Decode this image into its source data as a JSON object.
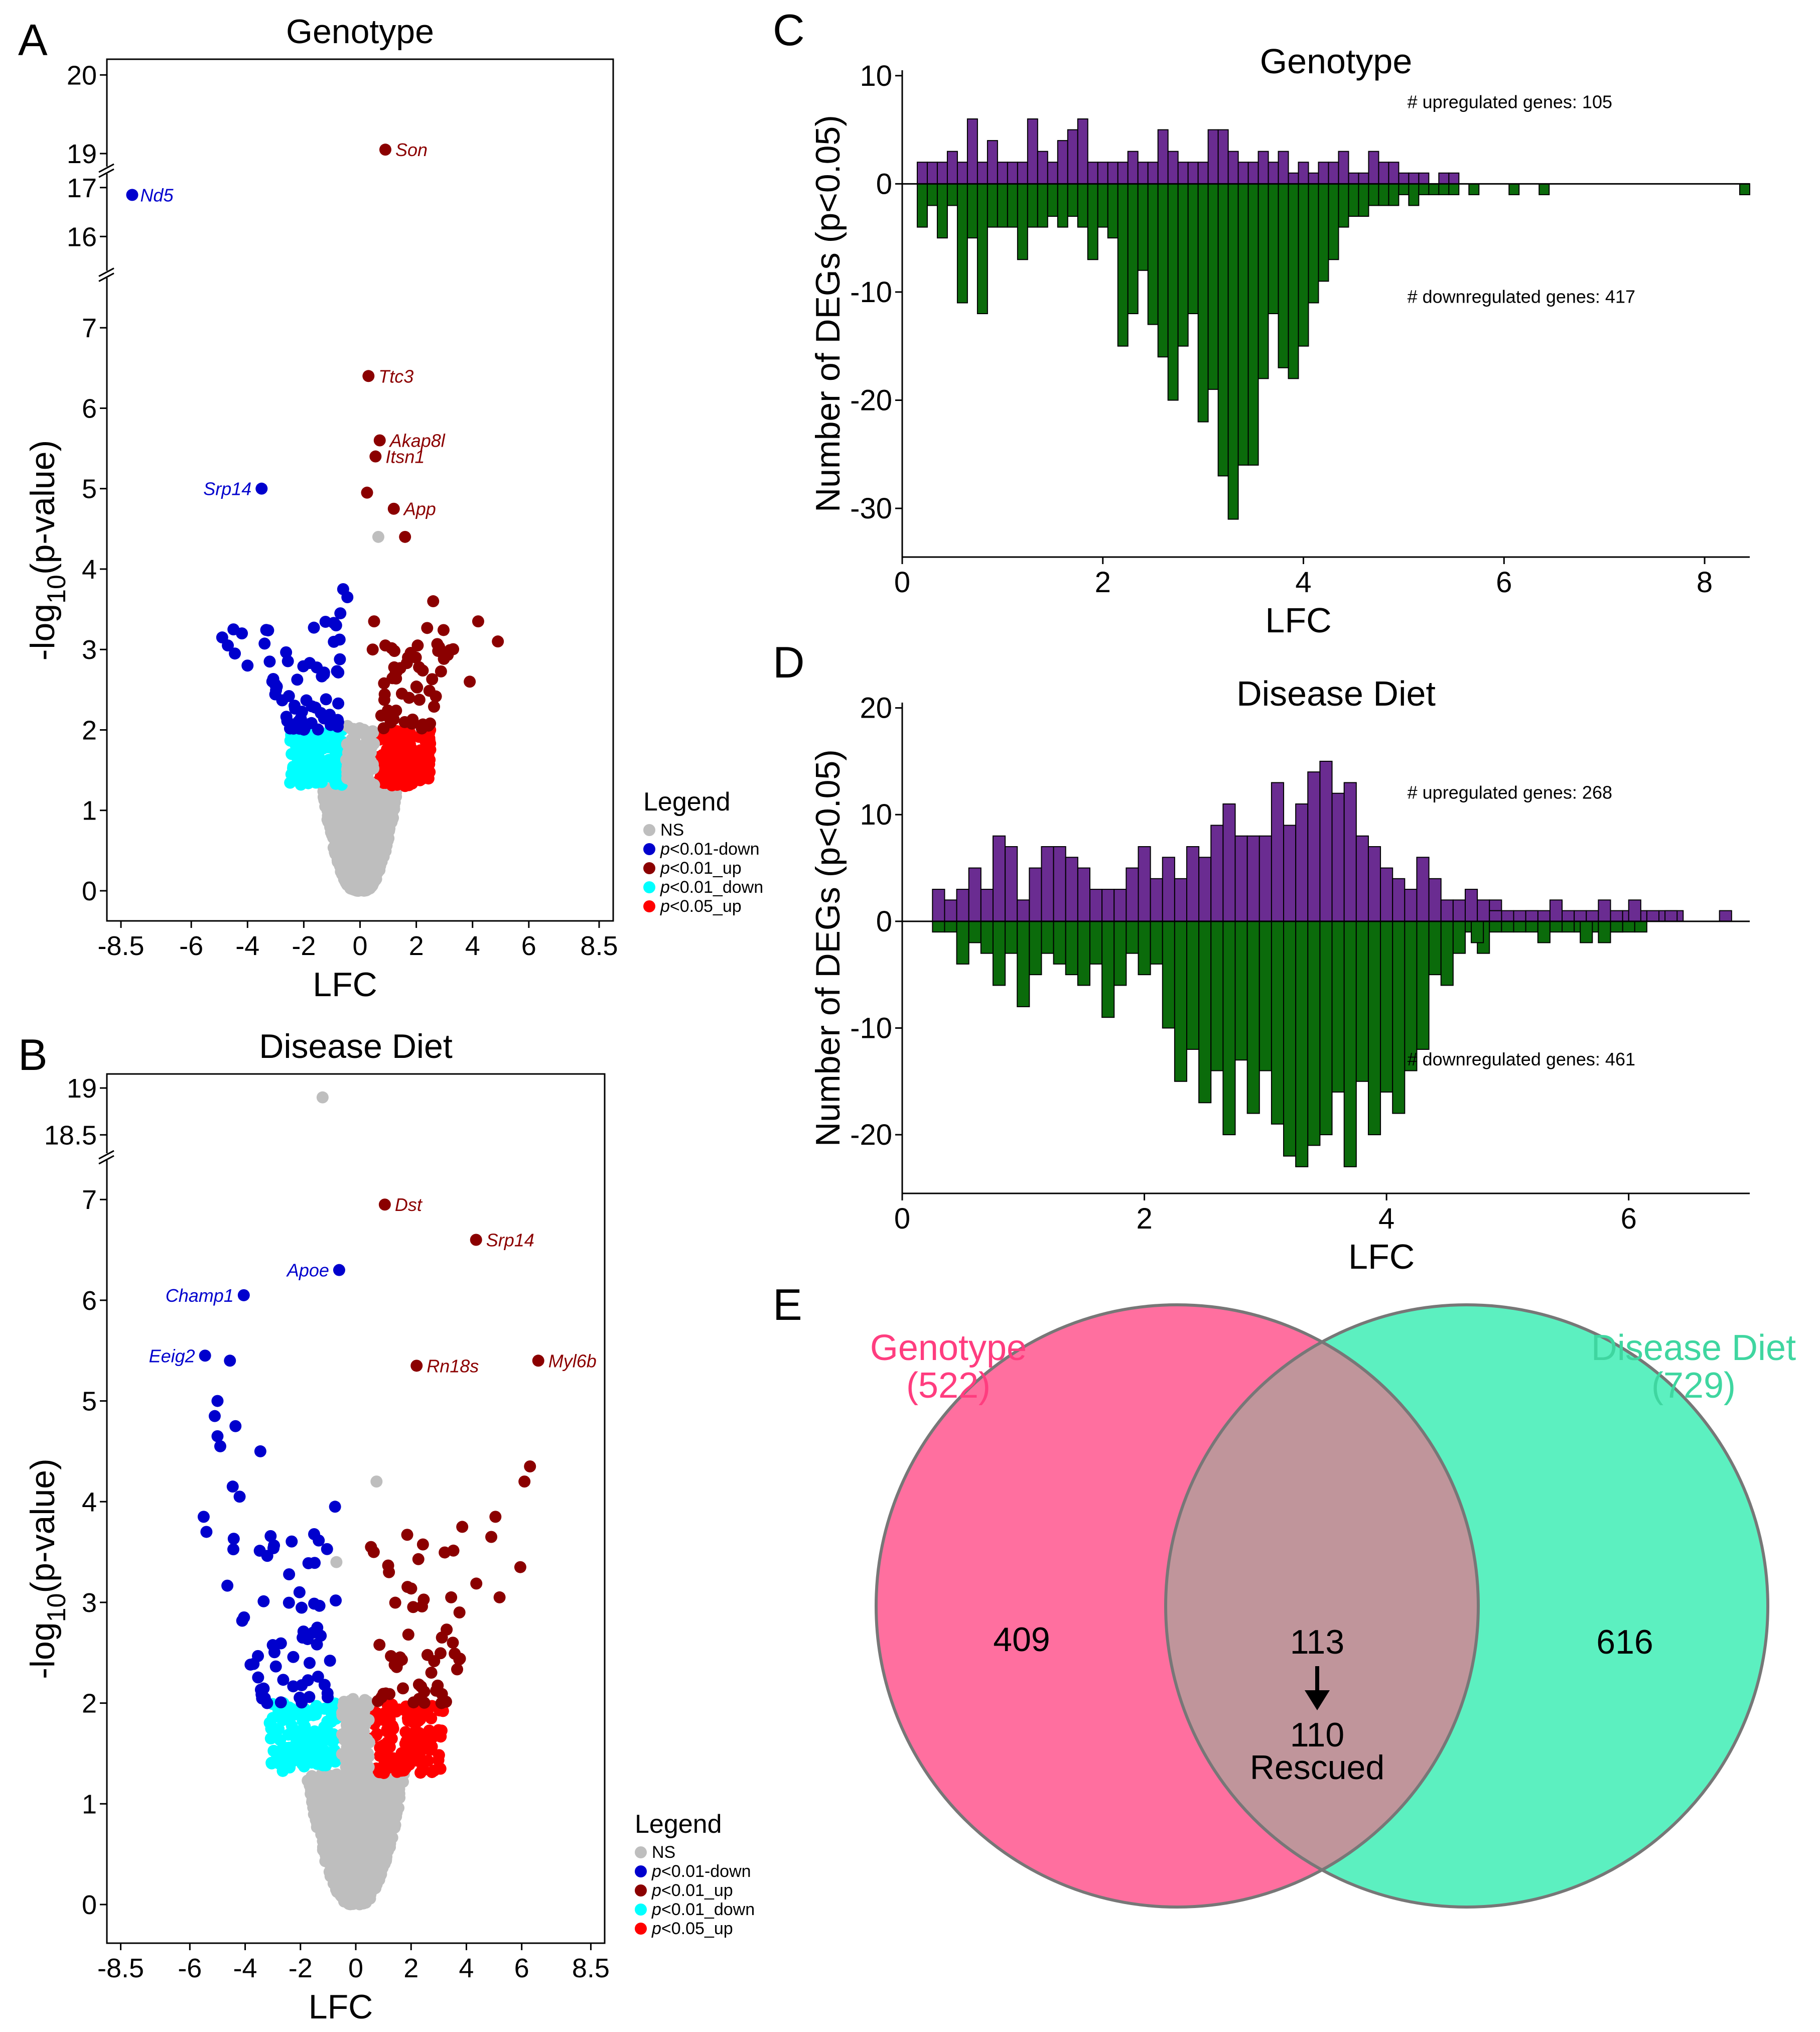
{
  "colors": {
    "ns": "#bebebe",
    "down01": "#0000cd",
    "up01": "#8b0000",
    "down05": "#00ffff",
    "up05": "#ff0000",
    "hist_up": "#6a2c91",
    "hist_down": "#0b6b0b",
    "venn_left": "#ff6f9f",
    "venn_right": "#5cf0c0",
    "venn_overlap": "#c0959b",
    "venn_left_text": "#ff3d7f",
    "venn_right_text": "#3fd6a0"
  },
  "chart_data": [
    {
      "id": "A",
      "panel_letter": "A",
      "type": "scatter",
      "title": "Genotype",
      "xlabel": "LFC",
      "ylabel_main": "-log",
      "ylabel_sub": "10",
      "ylabel_tail": "(p-value)",
      "xlim": [
        -9,
        9
      ],
      "x_ticks": [
        -8.5,
        -6,
        -4,
        -2,
        0,
        2,
        4,
        6,
        8.5
      ],
      "x_tick_labels": [
        "-8.5",
        "-6",
        "-4",
        "-2",
        "0",
        "2",
        "4",
        "6",
        "8.5"
      ],
      "y_segments": [
        {
          "range": [
            0,
            7.5
          ],
          "ticks": [
            0,
            1,
            2,
            3,
            4,
            5,
            6,
            7
          ]
        },
        {
          "range": [
            15.5,
            17.5
          ],
          "ticks": [
            16,
            17
          ]
        },
        {
          "range": [
            18.7,
            20.2
          ],
          "ticks": [
            19,
            20
          ]
        }
      ],
      "y_tick_labels": [
        "0",
        "1",
        "2",
        "3",
        "4",
        "5",
        "6",
        "7",
        "16",
        "17",
        "19",
        "20"
      ],
      "labeled_points": [
        {
          "gene": "Nd5",
          "x": -8.1,
          "y": 16.85,
          "cls": "down01"
        },
        {
          "gene": "Son",
          "x": 0.9,
          "y": 19.05,
          "cls": "up01"
        },
        {
          "gene": "Ttc3",
          "x": 0.3,
          "y": 6.4,
          "cls": "up01"
        },
        {
          "gene": "Akap8l",
          "x": 0.7,
          "y": 5.6,
          "cls": "up01"
        },
        {
          "gene": "Itsn1",
          "x": 0.55,
          "y": 5.4,
          "cls": "up01"
        },
        {
          "gene": "Srp14",
          "x": -3.5,
          "y": 5.0,
          "cls": "down01"
        },
        {
          "gene": "App",
          "x": 1.2,
          "y": 4.75,
          "cls": "up01"
        }
      ],
      "extra_points": [
        {
          "x": 0.25,
          "y": 4.95,
          "cls": "up01"
        },
        {
          "x": 1.6,
          "y": 4.4,
          "cls": "up01"
        },
        {
          "x": 0.65,
          "y": 4.4,
          "cls": "ns"
        },
        {
          "x": -0.6,
          "y": 3.75,
          "cls": "down01"
        },
        {
          "x": -0.45,
          "y": 3.65,
          "cls": "down01"
        },
        {
          "x": -0.7,
          "y": 3.45,
          "cls": "down01"
        },
        {
          "x": -0.85,
          "y": 3.3,
          "cls": "down01"
        },
        {
          "x": 2.6,
          "y": 3.6,
          "cls": "up01"
        },
        {
          "x": 4.2,
          "y": 3.35,
          "cls": "up01"
        },
        {
          "x": 4.9,
          "y": 3.1,
          "cls": "up01"
        },
        {
          "x": 0.5,
          "y": 3.35,
          "cls": "up01"
        },
        {
          "x": 0.45,
          "y": 3.0,
          "cls": "up01"
        },
        {
          "x": 0.9,
          "y": 3.05,
          "cls": "up01"
        },
        {
          "x": 2.05,
          "y": 3.05,
          "cls": "up01"
        },
        {
          "x": 3.9,
          "y": 2.6,
          "cls": "up01"
        },
        {
          "x": -4.5,
          "y": 3.25,
          "cls": "down01"
        },
        {
          "x": -4.9,
          "y": 3.15,
          "cls": "down01"
        },
        {
          "x": -4.2,
          "y": 3.2,
          "cls": "down01"
        },
        {
          "x": -4.7,
          "y": 3.05,
          "cls": "down01"
        },
        {
          "x": -4.45,
          "y": 2.95,
          "cls": "down01"
        },
        {
          "x": -4.0,
          "y": 2.8,
          "cls": "down01"
        }
      ],
      "cloud_seed": 11,
      "cloud_scale": 1.0,
      "ns_points": 1100,
      "legend": {
        "title": "Legend",
        "items": [
          {
            "cls": "ns",
            "prefix": "",
            "label": "NS"
          },
          {
            "cls": "down01",
            "prefix": "p",
            "label": "<0.01-down"
          },
          {
            "cls": "up01",
            "prefix": "p",
            "label": "<0.01_up"
          },
          {
            "cls": "down05",
            "prefix": "p",
            "label": "<0.01_down"
          },
          {
            "cls": "up05",
            "prefix": "p",
            "label": "<0.05_up"
          }
        ]
      }
    },
    {
      "id": "B",
      "panel_letter": "B",
      "type": "scatter",
      "title": "Disease Diet",
      "xlabel": "LFC",
      "ylabel_main": "-log",
      "ylabel_sub": "10",
      "ylabel_tail": "(p-value)",
      "xlim": [
        -9,
        9
      ],
      "x_ticks": [
        -8.5,
        -6,
        -4,
        -2,
        0,
        2,
        4,
        6,
        8.5
      ],
      "x_tick_labels": [
        "-8.5",
        "-6",
        "-4",
        "-2",
        "0",
        "2",
        "4",
        "6",
        "8.5"
      ],
      "y_segments": [
        {
          "range": [
            0,
            7.3
          ],
          "ticks": [
            0,
            1,
            2,
            3,
            4,
            5,
            6,
            7
          ]
        },
        {
          "range": [
            18.4,
            19.15
          ],
          "ticks": [
            18.5,
            19
          ]
        }
      ],
      "y_tick_labels": [
        "0",
        "1",
        "2",
        "3",
        "4",
        "5",
        "6",
        "7",
        "18.5",
        "19"
      ],
      "labeled_points": [
        {
          "gene": "Dst",
          "x": 1.05,
          "y": 6.95,
          "cls": "up01"
        },
        {
          "gene": "Srp14",
          "x": 4.35,
          "y": 6.6,
          "cls": "up01"
        },
        {
          "gene": "Apoe",
          "x": -0.6,
          "y": 6.3,
          "cls": "down01"
        },
        {
          "gene": "Champ1",
          "x": -4.05,
          "y": 6.05,
          "cls": "down01"
        },
        {
          "gene": "Eeig2",
          "x": -5.45,
          "y": 5.45,
          "cls": "down01"
        },
        {
          "gene": "Rn18s",
          "x": 2.2,
          "y": 5.35,
          "cls": "up01"
        },
        {
          "gene": "Myl6b",
          "x": 6.6,
          "y": 5.4,
          "cls": "up01"
        }
      ],
      "extra_points": [
        {
          "x": -1.2,
          "y": 18.9,
          "cls": "ns"
        },
        {
          "x": -4.55,
          "y": 5.4,
          "cls": "down01"
        },
        {
          "x": -5.0,
          "y": 5.0,
          "cls": "down01"
        },
        {
          "x": -5.1,
          "y": 4.85,
          "cls": "down01"
        },
        {
          "x": -5.0,
          "y": 4.65,
          "cls": "down01"
        },
        {
          "x": -4.9,
          "y": 4.55,
          "cls": "down01"
        },
        {
          "x": -4.35,
          "y": 4.75,
          "cls": "down01"
        },
        {
          "x": -3.45,
          "y": 4.5,
          "cls": "down01"
        },
        {
          "x": -4.45,
          "y": 4.15,
          "cls": "down01"
        },
        {
          "x": -4.2,
          "y": 4.05,
          "cls": "down01"
        },
        {
          "x": -5.5,
          "y": 3.85,
          "cls": "down01"
        },
        {
          "x": -5.4,
          "y": 3.7,
          "cls": "down01"
        },
        {
          "x": -0.75,
          "y": 3.95,
          "cls": "down01"
        },
        {
          "x": -0.7,
          "y": 3.4,
          "cls": "ns"
        },
        {
          "x": 0.75,
          "y": 4.2,
          "cls": "ns"
        },
        {
          "x": 6.3,
          "y": 4.35,
          "cls": "up01"
        },
        {
          "x": 6.1,
          "y": 4.2,
          "cls": "up01"
        },
        {
          "x": 5.05,
          "y": 3.85,
          "cls": "up01"
        },
        {
          "x": 4.9,
          "y": 3.65,
          "cls": "up01"
        },
        {
          "x": 3.85,
          "y": 3.75,
          "cls": "up01"
        },
        {
          "x": 5.95,
          "y": 3.35,
          "cls": "up01"
        },
        {
          "x": 5.2,
          "y": 3.05,
          "cls": "up01"
        },
        {
          "x": 0.55,
          "y": 3.55,
          "cls": "up01"
        },
        {
          "x": 0.65,
          "y": 3.5,
          "cls": "up01"
        },
        {
          "x": 3.45,
          "y": 3.05,
          "cls": "up01"
        },
        {
          "x": 3.75,
          "y": 2.9,
          "cls": "up01"
        },
        {
          "x": 1.2,
          "y": 3.3,
          "cls": "up01"
        }
      ],
      "cloud_seed": 23,
      "cloud_scale": 1.35,
      "ns_points": 1200,
      "legend": {
        "title": "Legend",
        "items": [
          {
            "cls": "ns",
            "prefix": "",
            "label": "NS"
          },
          {
            "cls": "down01",
            "prefix": "p",
            "label": "<0.01-down"
          },
          {
            "cls": "up01",
            "prefix": "p",
            "label": "<0.01_up"
          },
          {
            "cls": "down05",
            "prefix": "p",
            "label": "<0.01_down"
          },
          {
            "cls": "up05",
            "prefix": "p",
            "label": "<0.05_up"
          }
        ]
      }
    },
    {
      "id": "C",
      "panel_letter": "C",
      "type": "bar",
      "title": "Genotype",
      "xlabel": "LFC",
      "ylabel": "Number of DEGs (p<0.05)",
      "xlim": [
        0,
        8.45
      ],
      "ylim": [
        -34.5,
        10.5
      ],
      "x_ticks": [
        0,
        2,
        4,
        6,
        8
      ],
      "x_tick_labels": [
        "0",
        "2",
        "4",
        "6",
        "8"
      ],
      "y_ticks": [
        10,
        0,
        -10,
        -20,
        -30
      ],
      "y_tick_labels": [
        "10",
        "0",
        "-10",
        "-20",
        "-30"
      ],
      "bin_start": 0.15,
      "bin_width": 0.1,
      "series": [
        {
          "name": "upregulated",
          "values": [
            2,
            2,
            2,
            3,
            2,
            6,
            2,
            4,
            2,
            2,
            2,
            6,
            3,
            2,
            4,
            5,
            6,
            2,
            2,
            2,
            2,
            3,
            2,
            2,
            5,
            3,
            2,
            2,
            2,
            5,
            5,
            3,
            2,
            2,
            3,
            2,
            3,
            1,
            2,
            1,
            2,
            2,
            3,
            1,
            1,
            3,
            2,
            2,
            1,
            1,
            1,
            0,
            1,
            1,
            0,
            0,
            0,
            0,
            0,
            0,
            0,
            0,
            0,
            0,
            0,
            0,
            0,
            0,
            0,
            0,
            0,
            0,
            0,
            0,
            0,
            0,
            0,
            0,
            0,
            0,
            0,
            0,
            0,
            0
          ]
        },
        {
          "name": "downregulated",
          "values": [
            -4,
            -2,
            -5,
            -2,
            -11,
            -5,
            -12,
            -4,
            -4,
            -4,
            -7,
            -4,
            -4,
            -3,
            -4,
            -3,
            -4,
            -7,
            -4,
            -5,
            -15,
            -12,
            -8,
            -13,
            -16,
            -20,
            -15,
            -12,
            -22,
            -19,
            -27,
            -31,
            -26,
            -26,
            -18,
            -12,
            -17,
            -18,
            -15,
            -11,
            -9,
            -7,
            -4,
            -3,
            -3,
            -2,
            -2,
            -2,
            -1,
            -2,
            -1,
            -1,
            -1,
            -1,
            0,
            -1,
            0,
            0,
            0,
            -1,
            0,
            0,
            -1,
            0,
            0,
            0,
            0,
            0,
            0,
            0,
            0,
            0,
            0,
            0,
            0,
            0,
            0,
            0,
            0,
            0,
            0,
            0,
            -1,
            0
          ]
        }
      ],
      "far_bars": [
        {
          "x": 8.35,
          "value": -1
        }
      ],
      "annotations": [
        "# upregulated genes: 105",
        "# downregulated genes: 417"
      ]
    },
    {
      "id": "D",
      "panel_letter": "D",
      "type": "bar",
      "title": "Disease Diet",
      "xlabel": "LFC",
      "ylabel": "Number of DEGs (p<0.05)",
      "xlim": [
        0,
        7.0
      ],
      "ylim": [
        -25.5,
        20.5
      ],
      "x_ticks": [
        0,
        2,
        4,
        6
      ],
      "x_tick_labels": [
        "0",
        "2",
        "4",
        "6"
      ],
      "y_ticks": [
        20,
        10,
        0,
        -10,
        -20
      ],
      "y_tick_labels": [
        "20",
        "10",
        "0",
        "-10",
        "-20"
      ],
      "bin_start": 0.25,
      "bin_width": 0.1,
      "series": [
        {
          "name": "upregulated",
          "values": [
            3,
            2,
            3,
            5,
            3,
            8,
            7,
            2,
            5,
            7,
            7,
            6,
            5,
            3,
            3,
            3,
            5,
            7,
            4,
            6,
            4,
            7,
            6,
            9,
            11,
            8,
            8,
            8,
            13,
            9,
            11,
            14,
            15,
            12,
            13,
            8,
            7,
            5,
            4,
            3,
            6,
            4,
            2,
            2,
            3,
            2,
            2,
            1,
            1,
            1,
            1,
            1,
            1,
            1,
            1,
            2,
            1,
            1,
            1,
            1,
            1,
            1,
            0,
            0,
            0,
            0,
            0,
            0,
            0,
            0,
            0,
            0,
            0,
            0,
            0,
            0,
            0,
            0,
            0,
            0,
            0,
            0,
            0,
            0,
            0,
            0,
            0,
            0,
            0,
            0,
            0,
            0,
            0,
            0,
            0,
            0,
            0,
            0,
            0,
            0,
            0,
            0,
            0,
            0,
            0,
            0,
            0,
            0,
            0,
            0,
            0,
            0,
            0,
            0,
            0,
            0,
            0,
            0,
            0,
            0,
            0,
            0,
            0,
            0,
            0,
            0,
            0
          ]
        },
        {
          "name": "downregulated",
          "values": [
            -1,
            -1,
            -4,
            -2,
            -3,
            -6,
            -3,
            -8,
            -5,
            -3,
            -4,
            -5,
            -6,
            -4,
            -9,
            -6,
            -3,
            -5,
            -4,
            -10,
            -15,
            -12,
            -17,
            -14,
            -20,
            -13,
            -18,
            -14,
            -19,
            -22,
            -23,
            -21,
            -20,
            -16,
            -23,
            -15,
            -20,
            -16,
            -18,
            -14,
            -12,
            -5,
            -6,
            -3,
            -1,
            -3,
            -1,
            -1,
            -1,
            -1,
            -2,
            -1,
            -1,
            -1,
            -1,
            -2,
            -1,
            -1,
            -1,
            0,
            0,
            0,
            0,
            0,
            0,
            0,
            0,
            0,
            0,
            0,
            0,
            0,
            0,
            0,
            0,
            0,
            0,
            0,
            0,
            0,
            0,
            0,
            0,
            0,
            0,
            0,
            0,
            0,
            0,
            0,
            0,
            0,
            0,
            0,
            0,
            0,
            0,
            0,
            0,
            0,
            0,
            0,
            0,
            0,
            0,
            0,
            0,
            0,
            0,
            0,
            0,
            0,
            0,
            0,
            0,
            0,
            0,
            0,
            0,
            0,
            0,
            0,
            0,
            0,
            0,
            0,
            0
          ]
        }
      ],
      "far_bars": [
        {
          "x": 4.7,
          "value": -2
        },
        {
          "x": 4.85,
          "value": 1
        },
        {
          "x": 5.15,
          "value": 1
        },
        {
          "x": 5.35,
          "value": 2
        },
        {
          "x": 5.6,
          "value": -2
        },
        {
          "x": 5.85,
          "value": -1
        },
        {
          "x": 6.0,
          "value": 2
        },
        {
          "x": 6.3,
          "value": 1
        },
        {
          "x": 6.75,
          "value": 1
        }
      ],
      "annotations": [
        "# upregulated genes: 268",
        "# downregulated genes: 461"
      ]
    },
    {
      "id": "E",
      "panel_letter": "E",
      "type": "venn",
      "sets": [
        {
          "name": "Genotype",
          "count_label": "(522)",
          "total": 522,
          "unique": 409
        },
        {
          "name": "Disease Diet",
          "count_label": "(729)",
          "total": 729,
          "unique": 616
        }
      ],
      "overlap": 113,
      "rescued": 110,
      "rescued_label": "Rescued"
    }
  ]
}
